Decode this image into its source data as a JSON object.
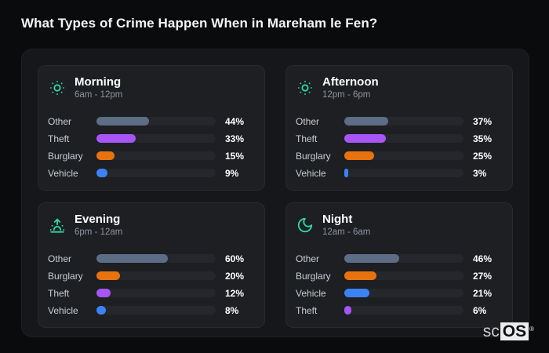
{
  "page": {
    "title": "What Types of Crime Happen When in Mareham le Fen?",
    "watermark": {
      "prefix": "sc",
      "brand": "OS",
      "registered": "®"
    }
  },
  "colors": {
    "accent_icon": "#2fd6a4",
    "other": "#5c6d85",
    "theft": "#a855f7",
    "burglary": "#e8720e",
    "vehicle": "#3b82f6",
    "bar_track": "#25272c",
    "card_bg": "#1d1f23",
    "panel_bg": "#16171b",
    "page_bg": "#0a0b0d"
  },
  "cards": [
    {
      "id": "morning",
      "icon": "sun-icon",
      "title": "Morning",
      "range": "6am - 12pm",
      "rows": [
        {
          "label": "Other",
          "value": 44,
          "display": "44%",
          "color": "#5c6d85"
        },
        {
          "label": "Theft",
          "value": 33,
          "display": "33%",
          "color": "#a855f7"
        },
        {
          "label": "Burglary",
          "value": 15,
          "display": "15%",
          "color": "#e8720e"
        },
        {
          "label": "Vehicle",
          "value": 9,
          "display": "9%",
          "color": "#3b82f6"
        }
      ]
    },
    {
      "id": "afternoon",
      "icon": "sun-icon",
      "title": "Afternoon",
      "range": "12pm - 6pm",
      "rows": [
        {
          "label": "Other",
          "value": 37,
          "display": "37%",
          "color": "#5c6d85"
        },
        {
          "label": "Theft",
          "value": 35,
          "display": "35%",
          "color": "#a855f7"
        },
        {
          "label": "Burglary",
          "value": 25,
          "display": "25%",
          "color": "#e8720e"
        },
        {
          "label": "Vehicle",
          "value": 3,
          "display": "3%",
          "color": "#3b82f6"
        }
      ]
    },
    {
      "id": "evening",
      "icon": "sunrise-icon",
      "title": "Evening",
      "range": "6pm - 12am",
      "rows": [
        {
          "label": "Other",
          "value": 60,
          "display": "60%",
          "color": "#5c6d85"
        },
        {
          "label": "Burglary",
          "value": 20,
          "display": "20%",
          "color": "#e8720e"
        },
        {
          "label": "Theft",
          "value": 12,
          "display": "12%",
          "color": "#a855f7"
        },
        {
          "label": "Vehicle",
          "value": 8,
          "display": "8%",
          "color": "#3b82f6"
        }
      ]
    },
    {
      "id": "night",
      "icon": "moon-icon",
      "title": "Night",
      "range": "12am - 6am",
      "rows": [
        {
          "label": "Other",
          "value": 46,
          "display": "46%",
          "color": "#5c6d85"
        },
        {
          "label": "Burglary",
          "value": 27,
          "display": "27%",
          "color": "#e8720e"
        },
        {
          "label": "Vehicle",
          "value": 21,
          "display": "21%",
          "color": "#3b82f6"
        },
        {
          "label": "Theft",
          "value": 6,
          "display": "6%",
          "color": "#a855f7"
        }
      ]
    }
  ],
  "chart_data": [
    {
      "type": "bar",
      "orientation": "horizontal",
      "title": "Morning",
      "subtitle": "6am - 12pm",
      "categories": [
        "Other",
        "Theft",
        "Burglary",
        "Vehicle"
      ],
      "values": [
        44,
        33,
        15,
        9
      ],
      "value_labels": [
        "44%",
        "33%",
        "15%",
        "9%"
      ],
      "unit": "%",
      "xlim": [
        0,
        100
      ],
      "grid": false,
      "legend": false
    },
    {
      "type": "bar",
      "orientation": "horizontal",
      "title": "Afternoon",
      "subtitle": "12pm - 6pm",
      "categories": [
        "Other",
        "Theft",
        "Burglary",
        "Vehicle"
      ],
      "values": [
        37,
        35,
        25,
        3
      ],
      "value_labels": [
        "37%",
        "35%",
        "25%",
        "3%"
      ],
      "unit": "%",
      "xlim": [
        0,
        100
      ],
      "grid": false,
      "legend": false
    },
    {
      "type": "bar",
      "orientation": "horizontal",
      "title": "Evening",
      "subtitle": "6pm - 12am",
      "categories": [
        "Other",
        "Burglary",
        "Theft",
        "Vehicle"
      ],
      "values": [
        60,
        20,
        12,
        8
      ],
      "value_labels": [
        "60%",
        "20%",
        "12%",
        "8%"
      ],
      "unit": "%",
      "xlim": [
        0,
        100
      ],
      "grid": false,
      "legend": false
    },
    {
      "type": "bar",
      "orientation": "horizontal",
      "title": "Night",
      "subtitle": "12am - 6am",
      "categories": [
        "Other",
        "Burglary",
        "Vehicle",
        "Theft"
      ],
      "values": [
        46,
        27,
        21,
        6
      ],
      "value_labels": [
        "46%",
        "27%",
        "21%",
        "6%"
      ],
      "unit": "%",
      "xlim": [
        0,
        100
      ],
      "grid": false,
      "legend": false
    }
  ]
}
